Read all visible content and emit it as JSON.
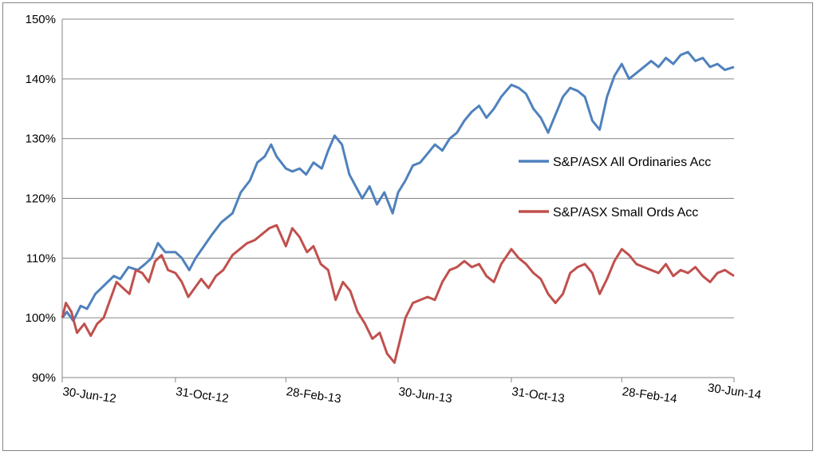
{
  "chart_data": {
    "type": "line",
    "title": "",
    "xlabel": "",
    "ylabel": "",
    "ylim": [
      90,
      150
    ],
    "y_ticks": [
      "90%",
      "100%",
      "110%",
      "120%",
      "130%",
      "140%",
      "150%"
    ],
    "y_tick_values": [
      90,
      100,
      110,
      120,
      130,
      140,
      150
    ],
    "x_ticks": [
      "30-Jun-12",
      "31-Oct-12",
      "28-Feb-13",
      "30-Jun-13",
      "31-Oct-13",
      "28-Feb-14",
      "30-Jun-14"
    ],
    "x_tick_dates": [
      "2012-06-30",
      "2012-10-31",
      "2013-02-28",
      "2013-06-30",
      "2013-10-31",
      "2014-02-28",
      "2014-06-30"
    ],
    "grid": "horizontal",
    "legend_position": "right",
    "series": [
      {
        "name": "S&P/ASX All Ordinaries Acc",
        "color": "#4f81bd",
        "points": [
          [
            "2012-06-30",
            100
          ],
          [
            "2012-07-05",
            101
          ],
          [
            "2012-07-12",
            99.5
          ],
          [
            "2012-07-20",
            102
          ],
          [
            "2012-07-27",
            101.5
          ],
          [
            "2012-08-05",
            104
          ],
          [
            "2012-08-15",
            105.5
          ],
          [
            "2012-08-25",
            107
          ],
          [
            "2012-09-01",
            106.5
          ],
          [
            "2012-09-10",
            108.5
          ],
          [
            "2012-09-20",
            108
          ],
          [
            "2012-09-28",
            109
          ],
          [
            "2012-10-05",
            110
          ],
          [
            "2012-10-12",
            112.5
          ],
          [
            "2012-10-20",
            111
          ],
          [
            "2012-10-31",
            111
          ],
          [
            "2012-11-07",
            110
          ],
          [
            "2012-11-15",
            108
          ],
          [
            "2012-11-22",
            110
          ],
          [
            "2012-12-01",
            112
          ],
          [
            "2012-12-10",
            114
          ],
          [
            "2012-12-20",
            116
          ],
          [
            "2013-01-01",
            117.5
          ],
          [
            "2013-01-10",
            121
          ],
          [
            "2013-01-20",
            123
          ],
          [
            "2013-01-28",
            126
          ],
          [
            "2013-02-05",
            127
          ],
          [
            "2013-02-12",
            129
          ],
          [
            "2013-02-18",
            127
          ],
          [
            "2013-02-28",
            125
          ],
          [
            "2013-03-07",
            124.5
          ],
          [
            "2013-03-15",
            125
          ],
          [
            "2013-03-22",
            124
          ],
          [
            "2013-03-30",
            126
          ],
          [
            "2013-04-08",
            125
          ],
          [
            "2013-04-15",
            128
          ],
          [
            "2013-04-22",
            130.5
          ],
          [
            "2013-04-30",
            129
          ],
          [
            "2013-05-08",
            124
          ],
          [
            "2013-05-15",
            122
          ],
          [
            "2013-05-22",
            120
          ],
          [
            "2013-05-30",
            122
          ],
          [
            "2013-06-07",
            119
          ],
          [
            "2013-06-15",
            121
          ],
          [
            "2013-06-24",
            117.5
          ],
          [
            "2013-06-30",
            121
          ],
          [
            "2013-07-08",
            123
          ],
          [
            "2013-07-16",
            125.5
          ],
          [
            "2013-07-24",
            126
          ],
          [
            "2013-08-01",
            127.5
          ],
          [
            "2013-08-09",
            129
          ],
          [
            "2013-08-17",
            128
          ],
          [
            "2013-08-25",
            130
          ],
          [
            "2013-09-02",
            131
          ],
          [
            "2013-09-10",
            133
          ],
          [
            "2013-09-18",
            134.5
          ],
          [
            "2013-09-26",
            135.5
          ],
          [
            "2013-10-04",
            133.5
          ],
          [
            "2013-10-12",
            135
          ],
          [
            "2013-10-20",
            137
          ],
          [
            "2013-10-31",
            139
          ],
          [
            "2013-11-08",
            138.5
          ],
          [
            "2013-11-16",
            137.5
          ],
          [
            "2013-11-24",
            135
          ],
          [
            "2013-12-02",
            133.5
          ],
          [
            "2013-12-10",
            131
          ],
          [
            "2013-12-18",
            134
          ],
          [
            "2013-12-26",
            137
          ],
          [
            "2014-01-03",
            138.5
          ],
          [
            "2014-01-11",
            138
          ],
          [
            "2014-01-19",
            137
          ],
          [
            "2014-01-27",
            133
          ],
          [
            "2014-02-04",
            131.5
          ],
          [
            "2014-02-12",
            137
          ],
          [
            "2014-02-20",
            140.5
          ],
          [
            "2014-02-28",
            142.5
          ],
          [
            "2014-03-08",
            140
          ],
          [
            "2014-03-16",
            141
          ],
          [
            "2014-03-24",
            142
          ],
          [
            "2014-04-01",
            143
          ],
          [
            "2014-04-09",
            142
          ],
          [
            "2014-04-17",
            143.5
          ],
          [
            "2014-04-25",
            142.5
          ],
          [
            "2014-05-03",
            144
          ],
          [
            "2014-05-11",
            144.5
          ],
          [
            "2014-05-19",
            143
          ],
          [
            "2014-05-27",
            143.5
          ],
          [
            "2014-06-04",
            142
          ],
          [
            "2014-06-12",
            142.5
          ],
          [
            "2014-06-20",
            141.5
          ],
          [
            "2014-06-30",
            142
          ]
        ]
      },
      {
        "name": "S&P/ASX Small Ords Acc",
        "color": "#c0504d",
        "points": [
          [
            "2012-06-30",
            100
          ],
          [
            "2012-07-04",
            102.5
          ],
          [
            "2012-07-10",
            101
          ],
          [
            "2012-07-16",
            97.5
          ],
          [
            "2012-07-24",
            99
          ],
          [
            "2012-07-31",
            97
          ],
          [
            "2012-08-07",
            99
          ],
          [
            "2012-08-14",
            100
          ],
          [
            "2012-08-21",
            103
          ],
          [
            "2012-08-28",
            106
          ],
          [
            "2012-09-04",
            105
          ],
          [
            "2012-09-11",
            104
          ],
          [
            "2012-09-18",
            108
          ],
          [
            "2012-09-25",
            107.5
          ],
          [
            "2012-10-02",
            106
          ],
          [
            "2012-10-09",
            109.5
          ],
          [
            "2012-10-16",
            110.5
          ],
          [
            "2012-10-23",
            108
          ],
          [
            "2012-10-31",
            107.5
          ],
          [
            "2012-11-07",
            106
          ],
          [
            "2012-11-14",
            103.5
          ],
          [
            "2012-11-21",
            105
          ],
          [
            "2012-11-28",
            106.5
          ],
          [
            "2012-12-06",
            105
          ],
          [
            "2012-12-14",
            107
          ],
          [
            "2012-12-22",
            108
          ],
          [
            "2013-01-01",
            110.5
          ],
          [
            "2013-01-09",
            111.5
          ],
          [
            "2013-01-17",
            112.5
          ],
          [
            "2013-01-25",
            113
          ],
          [
            "2013-02-02",
            114
          ],
          [
            "2013-02-10",
            115
          ],
          [
            "2013-02-18",
            115.5
          ],
          [
            "2013-02-28",
            112
          ],
          [
            "2013-03-07",
            115
          ],
          [
            "2013-03-15",
            113.5
          ],
          [
            "2013-03-23",
            111
          ],
          [
            "2013-03-30",
            112
          ],
          [
            "2013-04-07",
            109
          ],
          [
            "2013-04-15",
            108
          ],
          [
            "2013-04-23",
            103
          ],
          [
            "2013-05-01",
            106
          ],
          [
            "2013-05-09",
            104.5
          ],
          [
            "2013-05-17",
            101
          ],
          [
            "2013-05-25",
            99
          ],
          [
            "2013-06-02",
            96.5
          ],
          [
            "2013-06-10",
            97.5
          ],
          [
            "2013-06-18",
            94
          ],
          [
            "2013-06-26",
            92.5
          ],
          [
            "2013-06-30",
            95
          ],
          [
            "2013-07-08",
            100
          ],
          [
            "2013-07-16",
            102.5
          ],
          [
            "2013-07-24",
            103
          ],
          [
            "2013-08-01",
            103.5
          ],
          [
            "2013-08-09",
            103
          ],
          [
            "2013-08-17",
            106
          ],
          [
            "2013-08-25",
            108
          ],
          [
            "2013-09-02",
            108.5
          ],
          [
            "2013-09-10",
            109.5
          ],
          [
            "2013-09-18",
            108.5
          ],
          [
            "2013-09-26",
            109
          ],
          [
            "2013-10-04",
            107
          ],
          [
            "2013-10-12",
            106
          ],
          [
            "2013-10-20",
            109
          ],
          [
            "2013-10-31",
            111.5
          ],
          [
            "2013-11-08",
            110
          ],
          [
            "2013-11-16",
            109
          ],
          [
            "2013-11-24",
            107.5
          ],
          [
            "2013-12-02",
            106.5
          ],
          [
            "2013-12-10",
            104
          ],
          [
            "2013-12-18",
            102.5
          ],
          [
            "2013-12-26",
            104
          ],
          [
            "2014-01-03",
            107.5
          ],
          [
            "2014-01-11",
            108.5
          ],
          [
            "2014-01-19",
            109
          ],
          [
            "2014-01-27",
            107.5
          ],
          [
            "2014-02-04",
            104
          ],
          [
            "2014-02-12",
            106.5
          ],
          [
            "2014-02-20",
            109.5
          ],
          [
            "2014-02-28",
            111.5
          ],
          [
            "2014-03-08",
            110.5
          ],
          [
            "2014-03-16",
            109
          ],
          [
            "2014-03-24",
            108.5
          ],
          [
            "2014-04-01",
            108
          ],
          [
            "2014-04-09",
            107.5
          ],
          [
            "2014-04-17",
            109
          ],
          [
            "2014-04-25",
            107
          ],
          [
            "2014-05-03",
            108
          ],
          [
            "2014-05-11",
            107.5
          ],
          [
            "2014-05-19",
            108.5
          ],
          [
            "2014-05-27",
            107
          ],
          [
            "2014-06-04",
            106
          ],
          [
            "2014-06-12",
            107.5
          ],
          [
            "2014-06-20",
            108
          ],
          [
            "2014-06-30",
            107
          ]
        ]
      }
    ]
  }
}
